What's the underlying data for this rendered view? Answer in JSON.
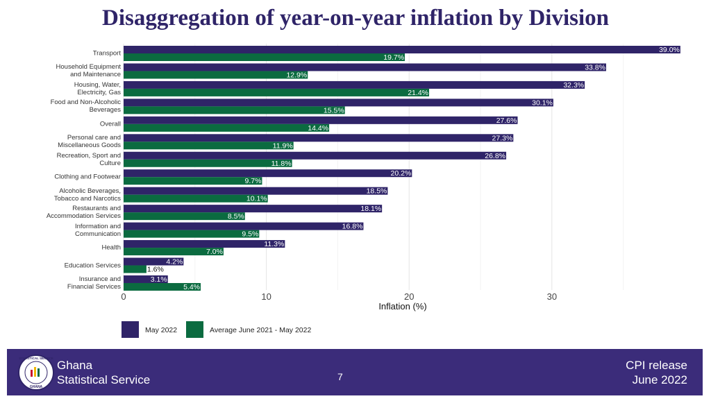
{
  "chart_data": {
    "type": "bar",
    "orientation": "horizontal",
    "title": "Disaggregation of year-on-year inflation by Division",
    "categories": [
      "Transport",
      "Household Equipment\nand Maintenance",
      "Housing, Water,\nElectricity, Gas",
      "Food and Non-Alcoholic\nBeverages",
      "Overall",
      "Personal care and\nMiscellaneous Goods",
      "Recreation, Sport and\nCulture",
      "Clothing and Footwear",
      "Alcoholic Beverages,\nTobacco and Narcotics",
      "Restaurants and\nAccommodation Services",
      "Information and\nCommunication",
      "Health",
      "Education Services",
      "Insurance and\nFinancial Services"
    ],
    "series": [
      {
        "name": "May 2022",
        "color": "#2f2468",
        "values": [
          39.0,
          33.8,
          32.3,
          30.1,
          27.6,
          27.3,
          26.8,
          20.2,
          18.5,
          18.1,
          16.8,
          11.3,
          4.2,
          3.1
        ],
        "value_labels": [
          "39.0%",
          "33.8%",
          "32.3%",
          "30.1%",
          "27.6%",
          "27.3%",
          "26.8%",
          "20.2%",
          "18.5%",
          "18.1%",
          "16.8%",
          "11.3%",
          "4.2%",
          "3.1%"
        ]
      },
      {
        "name": "Average June 2021 - May 2022",
        "color": "#0b6b40",
        "values": [
          19.7,
          12.9,
          21.4,
          15.5,
          14.4,
          11.9,
          11.8,
          9.7,
          10.1,
          8.5,
          9.5,
          7.0,
          1.6,
          5.4
        ],
        "value_labels": [
          "19.7%",
          "12.9%",
          "21.4%",
          "15.5%",
          "14.4%",
          "11.9%",
          "11.8%",
          "9.7%",
          "10.1%",
          "8.5%",
          "9.5%",
          "7.0%",
          "1.6%",
          "5.4%"
        ]
      }
    ],
    "x_label": "Inflation (%)",
    "xlim": [
      0,
      39.2
    ],
    "xticks": [
      0,
      10,
      20,
      30
    ],
    "grid": true,
    "legend": "bottom-left"
  },
  "footer": {
    "organization": "Ghana\nStatistical Service",
    "page": "7",
    "release": "CPI release\nJune  2022",
    "logo": {
      "top": "STATISTICAL SERVICE",
      "bottom": "GHANA"
    }
  }
}
